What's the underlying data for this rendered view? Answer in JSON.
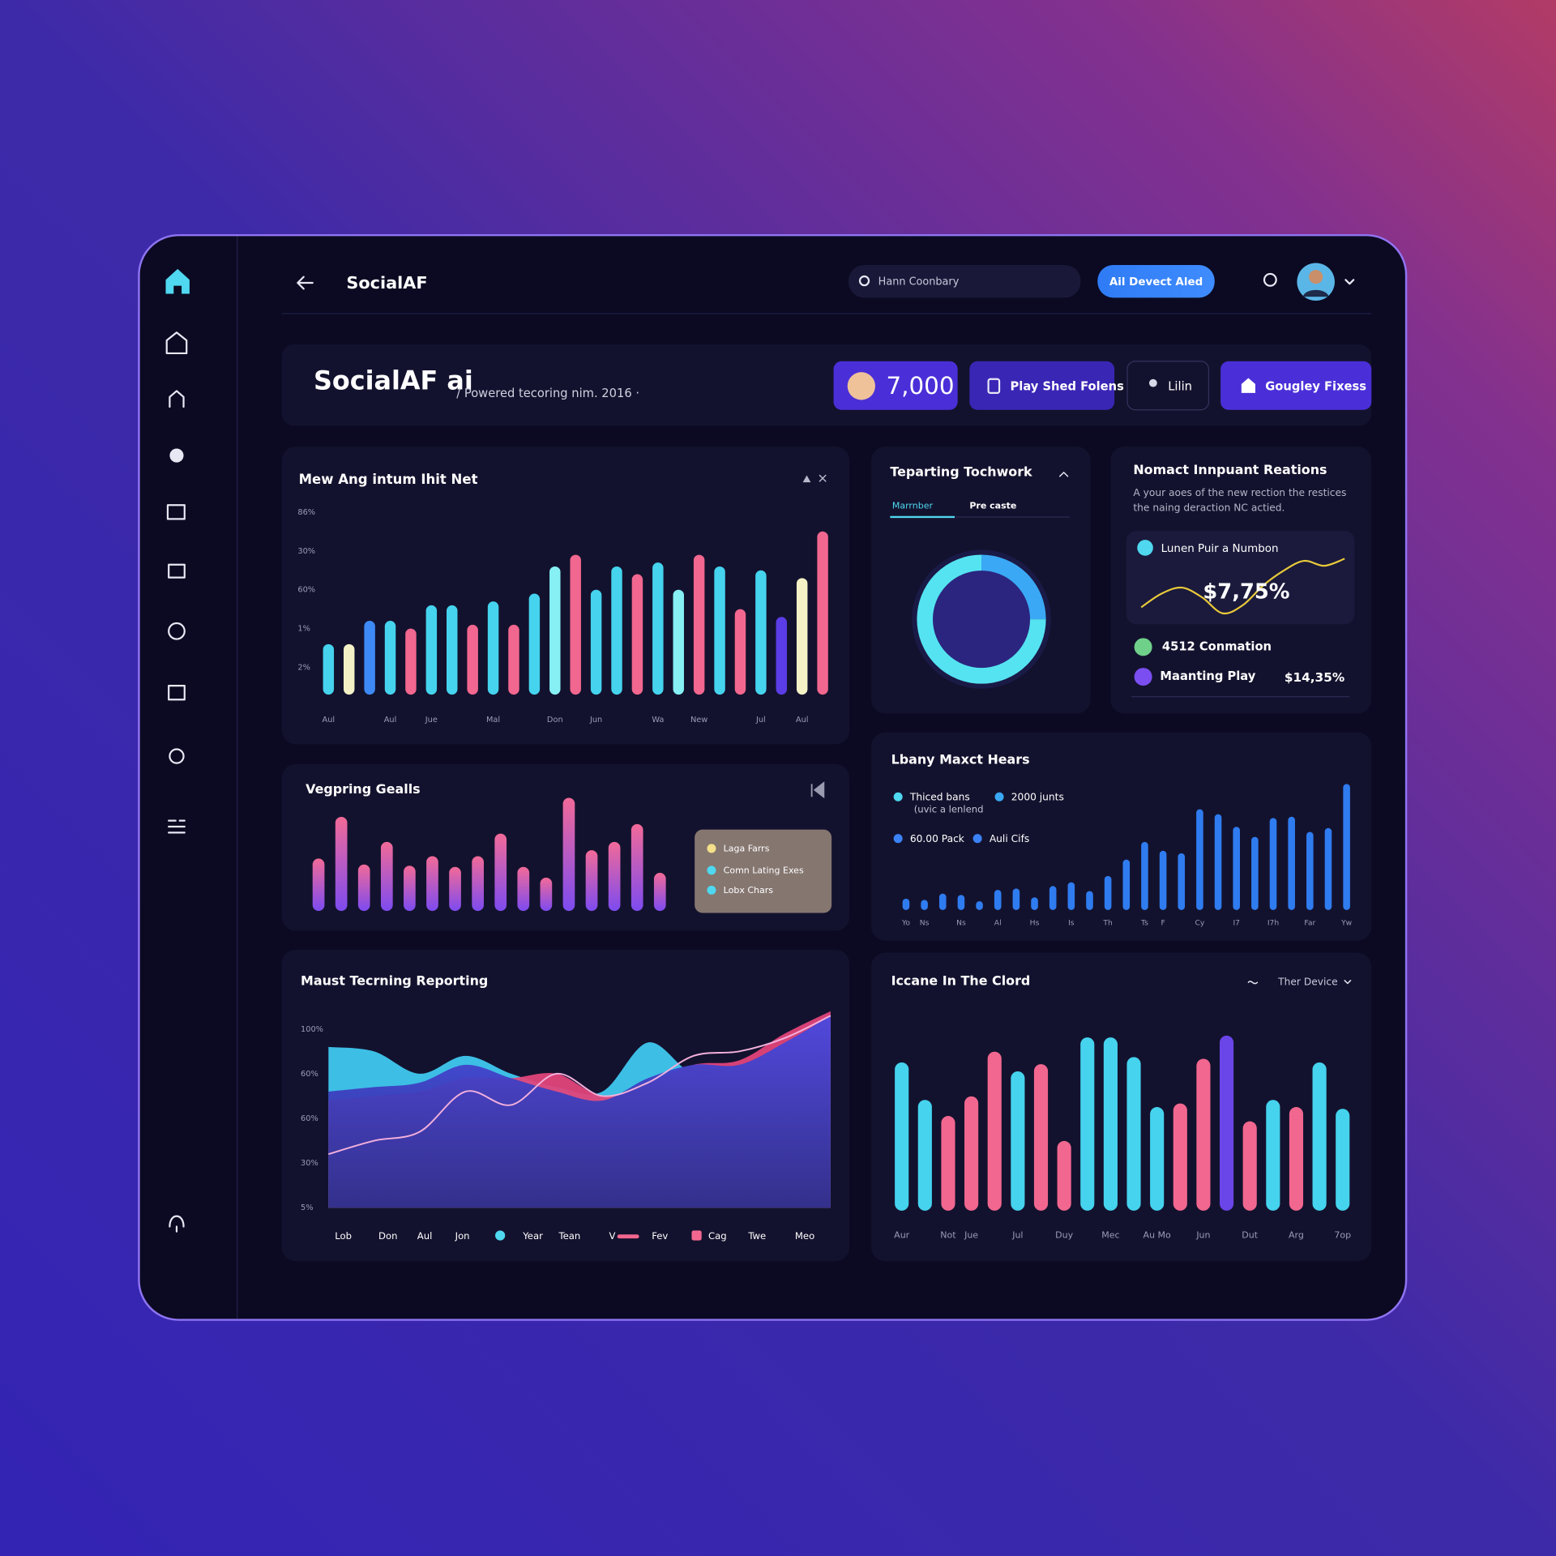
{
  "header": {
    "title": "SocialAF",
    "search": "Hann Coonbary",
    "button": "Ail Devect Aled"
  },
  "banner": {
    "brand": "SocialAF ai",
    "subtitle": "/ Powered tecoring nim. 2016 ·",
    "stat": "7,000",
    "buttons": [
      "Play Shed Folens",
      "Lilin",
      "Gougley Fixess"
    ]
  },
  "card": {
    "title": "Nomact Innpuant Reations",
    "description": [
      "A your aoes of the new rection the restices",
      "the naing deraction NC actied."
    ],
    "highlight": {
      "label": "Lunen Puir a Numbon",
      "value": "$7,75%"
    },
    "items": [
      {
        "label": "4512 Conmation"
      },
      {
        "label": "Maanting Play",
        "value": "$14,35%"
      }
    ]
  },
  "chart_data": [
    {
      "type": "bar",
      "title": "Mew Ang intum Ihit Net",
      "categories": [
        "Aul",
        null,
        null,
        "Aul",
        null,
        "Jue",
        null,
        null,
        "Mal",
        null,
        null,
        "Don",
        null,
        "Jun",
        null,
        null,
        "Wa",
        null,
        "New",
        null,
        null,
        "Jul",
        null,
        "Aul",
        null
      ],
      "values": [
        1.6,
        1.6,
        2.2,
        2.2,
        2.0,
        2.6,
        2.6,
        2.1,
        2.7,
        2.1,
        2.9,
        3.6,
        3.9,
        3.0,
        3.6,
        3.4,
        3.7,
        3.0,
        3.9,
        3.6,
        2.5,
        3.5,
        2.3,
        3.3,
        4.5
      ],
      "colors": [
        "#45d3ee",
        "#f4f1c6",
        "#3d8af7",
        "#45d3ee",
        "#f2678f",
        "#45d3ee",
        "#45d3ee",
        "#f2678f",
        "#45d3ee",
        "#f2678f",
        "#45d3ee",
        "#86f0f5",
        "#f2678f",
        "#45d3ee",
        "#45d3ee",
        "#f2678f",
        "#45d3ee",
        "#86f0f5",
        "#f2678f",
        "#45d3ee",
        "#f2678f",
        "#45d3ee",
        "#5a3de6",
        "#f4f1c6",
        "#f2678f"
      ],
      "ylim": [
        0.3,
        5
      ],
      "yticks": [
        {
          "value": 1,
          "label": "2%"
        },
        {
          "value": 2,
          "label": "1%"
        },
        {
          "value": 3,
          "label": "60%"
        },
        {
          "value": 4,
          "label": "30%"
        },
        {
          "value": 5,
          "label": "86%"
        }
      ]
    },
    {
      "type": "pie",
      "title": "Teparting Tochwork",
      "tabs": [
        "Marrnber",
        "Pre caste"
      ],
      "values": [
        25,
        75
      ],
      "colors": [
        "#3aa8f5",
        "#55e3f2"
      ]
    },
    {
      "type": "line",
      "x": [
        0,
        1,
        2,
        3,
        4,
        5,
        6,
        7,
        8,
        9,
        10
      ],
      "values": [
        11,
        36,
        47,
        29,
        0,
        15,
        51,
        78,
        96,
        87,
        100
      ],
      "xlim": [
        0,
        10
      ],
      "ylim": [
        0,
        100
      ],
      "color": "#e8c93a"
    },
    {
      "type": "bar",
      "title": "Vegpring Gealls",
      "values": [
        44,
        79,
        39,
        58,
        38,
        46,
        37,
        46,
        65,
        37,
        28,
        95,
        51,
        58,
        73,
        32
      ],
      "gradient": [
        "#f26a98",
        "#7d4bf0"
      ],
      "ylim": [
        0,
        100
      ],
      "legend": [
        {
          "name": "Laga Farrs",
          "color": "#f4e08a"
        },
        {
          "name": "Comn Lating Exes",
          "color": "#4fd8f0"
        },
        {
          "name": "Lobx Chars",
          "color": "#4fd8f0"
        }
      ]
    },
    {
      "type": "bar",
      "title": "Lbany Maxct Hears",
      "subtitle": "(uvic a lenlend",
      "categories": [
        "Yo",
        "Ns",
        null,
        "Ns",
        null,
        "Al",
        null,
        "Hs",
        null,
        "Is",
        null,
        "Th",
        null,
        "Ts",
        "F",
        null,
        "Cy",
        null,
        "I7",
        null,
        "I7h",
        null,
        "Far",
        null,
        "Yw"
      ],
      "values": [
        9,
        8,
        13,
        12,
        7,
        16,
        17,
        10,
        19,
        22,
        15,
        27,
        40,
        54,
        47,
        45,
        80,
        76,
        66,
        58,
        73,
        74,
        62,
        65,
        100
      ],
      "color": "#2f7cf0",
      "ylim": [
        0,
        100
      ],
      "legend": [
        {
          "name": "Thiced bans",
          "color": "#4fd8f0"
        },
        {
          "name": "2000 junts",
          "color": "#3aa8f5"
        },
        {
          "name": "60.00 Pack",
          "color": "#3b82f6"
        },
        {
          "name": "Auli Cifs",
          "color": "#3b82f6"
        }
      ]
    },
    {
      "type": "area",
      "title": "Maust Tecrning Reporting",
      "x": [
        0,
        1,
        2,
        3,
        4,
        5,
        6,
        7,
        8,
        9,
        10,
        11
      ],
      "xlim": [
        0,
        11
      ],
      "ylim": [
        0,
        4.4
      ],
      "yticks": [
        {
          "value": 0,
          "label": "5%"
        },
        {
          "value": 1,
          "label": "30%"
        },
        {
          "value": 2,
          "label": "60%"
        },
        {
          "value": 3,
          "label": "60%"
        },
        {
          "value": 4,
          "label": "100%"
        }
      ],
      "labels": [
        "Lob",
        "Don",
        "Aul",
        "Jon",
        "Year",
        "Tean",
        "V",
        "Fev",
        "Cag",
        "Twe",
        "Meo"
      ],
      "series": [
        {
          "color": "#3fc8ef",
          "style": "area",
          "values": [
            3.6,
            3.5,
            3.0,
            3.4,
            3.0,
            2.7,
            2.6,
            3.7,
            3.0,
            3.2,
            3.6,
            4.2
          ]
        },
        {
          "color": "#e0457a",
          "style": "area",
          "values": [
            2.4,
            2.5,
            2.6,
            2.9,
            2.9,
            3.0,
            2.5,
            2.8,
            3.2,
            3.3,
            3.9,
            4.4
          ]
        },
        {
          "color": "#4545d8",
          "style": "area",
          "values": [
            2.6,
            2.7,
            2.8,
            3.2,
            2.9,
            2.6,
            2.4,
            2.9,
            3.2,
            3.2,
            3.7,
            4.3
          ]
        },
        {
          "color": "#f3b0dc",
          "style": "line",
          "values": [
            1.2,
            1.5,
            1.7,
            2.6,
            2.3,
            3.0,
            2.5,
            2.8,
            3.4,
            3.5,
            3.8,
            4.3
          ]
        }
      ]
    },
    {
      "type": "bar",
      "title": "Iccane In The Clord",
      "filter": "Ther Device",
      "categories": [
        "Aur",
        null,
        "Not",
        "Jue",
        null,
        "Jul",
        null,
        "Duy",
        null,
        "Mec",
        null,
        "Au Mo",
        null,
        "Jun",
        null,
        "Dut",
        null,
        "Arg",
        null,
        "7op"
      ],
      "values": [
        83,
        62,
        53,
        64,
        89,
        78,
        82,
        39,
        97,
        97,
        86,
        58,
        60,
        85,
        98,
        50,
        62,
        58,
        83,
        57
      ],
      "colors": [
        "#45d3ee",
        "#45d3ee",
        "#f2678f",
        "#f2678f",
        "#f2678f",
        "#45d3ee",
        "#f2678f",
        "#f2678f",
        "#45d3ee",
        "#45d3ee",
        "#45d3ee",
        "#45d3ee",
        "#f2678f",
        "#f2678f",
        "#6a45e8",
        "#f2678f",
        "#45d3ee",
        "#f2678f",
        "#45d3ee",
        "#45d3ee"
      ],
      "ylim": [
        0,
        100
      ]
    }
  ]
}
